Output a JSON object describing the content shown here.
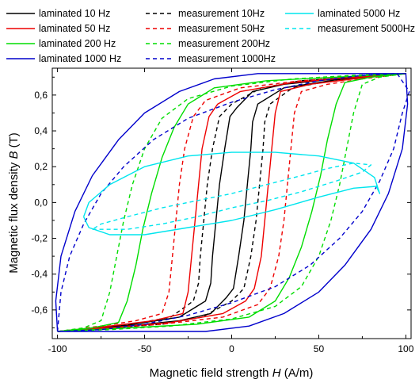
{
  "chart_data": {
    "type": "line",
    "xlabel": {
      "pre": "Magnetic field strength ",
      "var": "H",
      "post": " (A/m)"
    },
    "ylabel": {
      "pre": "Magnetic flux density ",
      "var": "B",
      "post": " (T)"
    },
    "xlim": [
      -103,
      103
    ],
    "ylim": [
      -0.76,
      0.75
    ],
    "xticks": [
      -100,
      -50,
      0,
      50,
      100
    ],
    "xtick_labels": [
      "-100",
      "-50",
      "0",
      "50",
      "100"
    ],
    "yticks": [
      -0.6,
      -0.4,
      -0.2,
      0.0,
      0.2,
      0.4,
      0.6
    ],
    "ytick_labels": [
      "-0,6",
      "-0,4",
      "-0,2",
      "0,0",
      "0,2",
      "0,4",
      "0,6"
    ],
    "grid": false,
    "legend_position": "top (above plot, 3 columns)",
    "series": [
      {
        "name": "laminated 10 Hz",
        "color": "#000000",
        "style": "solid",
        "points": [
          [
            -100,
            -0.72
          ],
          [
            -60,
            -0.685
          ],
          [
            -30,
            -0.64
          ],
          [
            -15,
            -0.55
          ],
          [
            -12,
            -0.45
          ],
          [
            -11,
            -0.3
          ],
          [
            -9,
            -0.1
          ],
          [
            -7,
            0.1
          ],
          [
            -4,
            0.3
          ],
          [
            -1,
            0.48
          ],
          [
            3,
            0.53
          ],
          [
            12,
            0.62
          ],
          [
            30,
            0.66
          ],
          [
            60,
            0.69
          ],
          [
            100,
            0.72
          ],
          [
            60,
            0.685
          ],
          [
            30,
            0.64
          ],
          [
            15,
            0.55
          ],
          [
            12,
            0.45
          ],
          [
            11,
            0.3
          ],
          [
            9,
            0.1
          ],
          [
            7,
            -0.1
          ],
          [
            4,
            -0.3
          ],
          [
            1,
            -0.48
          ],
          [
            -3,
            -0.53
          ],
          [
            -12,
            -0.62
          ],
          [
            -30,
            -0.66
          ],
          [
            -60,
            -0.69
          ],
          [
            -100,
            -0.72
          ]
        ]
      },
      {
        "name": "measurement 10Hz",
        "color": "#000000",
        "style": "dashed",
        "points": [
          [
            -100,
            -0.72
          ],
          [
            -60,
            -0.685
          ],
          [
            -35,
            -0.64
          ],
          [
            -22,
            -0.55
          ],
          [
            -19,
            -0.45
          ],
          [
            -18,
            -0.3
          ],
          [
            -16,
            -0.1
          ],
          [
            -14,
            0.1
          ],
          [
            -11,
            0.3
          ],
          [
            -7,
            0.48
          ],
          [
            0,
            0.55
          ],
          [
            17,
            0.64
          ],
          [
            40,
            0.68
          ],
          [
            70,
            0.7
          ],
          [
            100,
            0.72
          ],
          [
            60,
            0.685
          ],
          [
            35,
            0.64
          ],
          [
            22,
            0.55
          ],
          [
            19,
            0.45
          ],
          [
            18,
            0.3
          ],
          [
            16,
            0.1
          ],
          [
            14,
            -0.1
          ],
          [
            11,
            -0.3
          ],
          [
            7,
            -0.48
          ],
          [
            0,
            -0.55
          ],
          [
            -17,
            -0.64
          ],
          [
            -40,
            -0.68
          ],
          [
            -70,
            -0.7
          ],
          [
            -100,
            -0.72
          ]
        ]
      },
      {
        "name": "laminated 50 Hz",
        "color": "#ee0000",
        "style": "solid",
        "points": [
          [
            -100,
            -0.72
          ],
          [
            -70,
            -0.69
          ],
          [
            -45,
            -0.66
          ],
          [
            -28,
            -0.62
          ],
          [
            -25,
            -0.5
          ],
          [
            -23,
            -0.3
          ],
          [
            -21,
            -0.1
          ],
          [
            -19,
            0.1
          ],
          [
            -17,
            0.3
          ],
          [
            -13,
            0.48
          ],
          [
            -8,
            0.55
          ],
          [
            5,
            0.62
          ],
          [
            35,
            0.67
          ],
          [
            65,
            0.695
          ],
          [
            100,
            0.72
          ],
          [
            70,
            0.69
          ],
          [
            45,
            0.66
          ],
          [
            28,
            0.62
          ],
          [
            25,
            0.5
          ],
          [
            23,
            0.3
          ],
          [
            21,
            0.1
          ],
          [
            19,
            -0.1
          ],
          [
            17,
            -0.3
          ],
          [
            13,
            -0.48
          ],
          [
            8,
            -0.55
          ],
          [
            -5,
            -0.62
          ],
          [
            -35,
            -0.67
          ],
          [
            -65,
            -0.695
          ],
          [
            -100,
            -0.72
          ]
        ]
      },
      {
        "name": "measurement 50Hz",
        "color": "#ee0000",
        "style": "dashed",
        "points": [
          [
            -100,
            -0.72
          ],
          [
            -75,
            -0.69
          ],
          [
            -55,
            -0.66
          ],
          [
            -40,
            -0.62
          ],
          [
            -36,
            -0.5
          ],
          [
            -34,
            -0.3
          ],
          [
            -32,
            -0.1
          ],
          [
            -30,
            0.1
          ],
          [
            -27,
            0.3
          ],
          [
            -22,
            0.48
          ],
          [
            -15,
            0.57
          ],
          [
            5,
            0.64
          ],
          [
            40,
            0.68
          ],
          [
            70,
            0.7
          ],
          [
            100,
            0.72
          ],
          [
            75,
            0.69
          ],
          [
            55,
            0.66
          ],
          [
            40,
            0.62
          ],
          [
            36,
            0.5
          ],
          [
            34,
            0.3
          ],
          [
            32,
            0.1
          ],
          [
            30,
            -0.1
          ],
          [
            27,
            -0.3
          ],
          [
            22,
            -0.48
          ],
          [
            15,
            -0.57
          ],
          [
            -5,
            -0.64
          ],
          [
            -40,
            -0.68
          ],
          [
            -70,
            -0.7
          ],
          [
            -100,
            -0.72
          ]
        ]
      },
      {
        "name": "laminated 200 Hz",
        "color": "#00dd00",
        "style": "solid",
        "points": [
          [
            -100,
            -0.72
          ],
          [
            -80,
            -0.7
          ],
          [
            -65,
            -0.67
          ],
          [
            -60,
            -0.55
          ],
          [
            -55,
            -0.35
          ],
          [
            -51,
            -0.15
          ],
          [
            -46,
            0.05
          ],
          [
            -40,
            0.25
          ],
          [
            -33,
            0.42
          ],
          [
            -25,
            0.55
          ],
          [
            -10,
            0.64
          ],
          [
            20,
            0.68
          ],
          [
            60,
            0.7
          ],
          [
            100,
            0.72
          ],
          [
            80,
            0.7
          ],
          [
            65,
            0.67
          ],
          [
            60,
            0.55
          ],
          [
            55,
            0.35
          ],
          [
            51,
            0.15
          ],
          [
            46,
            -0.05
          ],
          [
            40,
            -0.25
          ],
          [
            33,
            -0.42
          ],
          [
            25,
            -0.55
          ],
          [
            10,
            -0.64
          ],
          [
            -20,
            -0.68
          ],
          [
            -60,
            -0.7
          ],
          [
            -100,
            -0.72
          ]
        ]
      },
      {
        "name": "measurement 200Hz",
        "color": "#00dd00",
        "style": "dashed",
        "points": [
          [
            -100,
            -0.72
          ],
          [
            -85,
            -0.7
          ],
          [
            -75,
            -0.66
          ],
          [
            -70,
            -0.5
          ],
          [
            -66,
            -0.3
          ],
          [
            -62,
            -0.1
          ],
          [
            -57,
            0.1
          ],
          [
            -50,
            0.3
          ],
          [
            -40,
            0.47
          ],
          [
            -25,
            0.58
          ],
          [
            0,
            0.65
          ],
          [
            35,
            0.69
          ],
          [
            70,
            0.71
          ],
          [
            100,
            0.72
          ],
          [
            85,
            0.7
          ],
          [
            75,
            0.66
          ],
          [
            70,
            0.5
          ],
          [
            66,
            0.3
          ],
          [
            62,
            0.1
          ],
          [
            57,
            -0.1
          ],
          [
            50,
            -0.3
          ],
          [
            40,
            -0.47
          ],
          [
            25,
            -0.58
          ],
          [
            0,
            -0.65
          ],
          [
            -35,
            -0.69
          ],
          [
            -70,
            -0.71
          ],
          [
            -100,
            -0.72
          ]
        ]
      },
      {
        "name": "laminated 1000 Hz",
        "color": "#0000cc",
        "style": "solid",
        "points": [
          [
            -100,
            -0.72
          ],
          [
            -101,
            -0.55
          ],
          [
            -98,
            -0.3
          ],
          [
            -90,
            -0.05
          ],
          [
            -80,
            0.15
          ],
          [
            -65,
            0.35
          ],
          [
            -50,
            0.5
          ],
          [
            -30,
            0.62
          ],
          [
            -10,
            0.69
          ],
          [
            15,
            0.72
          ],
          [
            45,
            0.72
          ],
          [
            75,
            0.72
          ],
          [
            100,
            0.72
          ],
          [
            101,
            0.55
          ],
          [
            98,
            0.3
          ],
          [
            90,
            0.05
          ],
          [
            80,
            -0.15
          ],
          [
            65,
            -0.35
          ],
          [
            50,
            -0.5
          ],
          [
            30,
            -0.62
          ],
          [
            10,
            -0.69
          ],
          [
            -15,
            -0.72
          ],
          [
            -45,
            -0.72
          ],
          [
            -75,
            -0.72
          ],
          [
            -100,
            -0.72
          ]
        ]
      },
      {
        "name": "measurement 1000Hz",
        "color": "#0000cc",
        "style": "dashed",
        "points": [
          [
            -100,
            -0.72
          ],
          [
            -98,
            -0.5
          ],
          [
            -93,
            -0.3
          ],
          [
            -85,
            -0.12
          ],
          [
            -75,
            0.05
          ],
          [
            -62,
            0.2
          ],
          [
            -45,
            0.35
          ],
          [
            -25,
            0.47
          ],
          [
            0,
            0.56
          ],
          [
            25,
            0.63
          ],
          [
            50,
            0.68
          ],
          [
            75,
            0.71
          ],
          [
            95,
            0.72
          ],
          [
            102,
            0.62
          ],
          [
            98,
            0.5
          ],
          [
            93,
            0.3
          ],
          [
            85,
            0.12
          ],
          [
            75,
            -0.05
          ],
          [
            62,
            -0.2
          ],
          [
            45,
            -0.35
          ],
          [
            25,
            -0.47
          ],
          [
            0,
            -0.56
          ],
          [
            -25,
            -0.63
          ],
          [
            -50,
            -0.68
          ],
          [
            -75,
            -0.71
          ],
          [
            -100,
            -0.72
          ]
        ]
      },
      {
        "name": "laminated 5000 Hz",
        "color": "#00e5ee",
        "style": "solid",
        "points": [
          [
            -85,
            -0.08
          ],
          [
            -82,
            -0.14
          ],
          [
            -70,
            -0.18
          ],
          [
            -50,
            -0.18
          ],
          [
            -25,
            -0.14
          ],
          [
            0,
            -0.1
          ],
          [
            25,
            -0.04
          ],
          [
            50,
            0.03
          ],
          [
            70,
            0.08
          ],
          [
            83,
            0.09
          ],
          [
            85,
            0.05
          ],
          [
            82,
            0.14
          ],
          [
            70,
            0.22
          ],
          [
            50,
            0.26
          ],
          [
            25,
            0.28
          ],
          [
            0,
            0.28
          ],
          [
            -25,
            0.26
          ],
          [
            -50,
            0.2
          ],
          [
            -70,
            0.1
          ],
          [
            -82,
            0.0
          ],
          [
            -85,
            -0.08
          ]
        ]
      },
      {
        "name": "measurement 5000Hz",
        "color": "#00e5ee",
        "style": "dashed",
        "points": [
          [
            -80,
            -0.15
          ],
          [
            -60,
            -0.15
          ],
          [
            -40,
            -0.12
          ],
          [
            -20,
            -0.08
          ],
          [
            0,
            -0.03
          ],
          [
            20,
            0.01
          ],
          [
            40,
            0.06
          ],
          [
            60,
            0.12
          ],
          [
            75,
            0.17
          ],
          [
            80,
            0.21
          ],
          [
            70,
            0.22
          ],
          [
            55,
            0.19
          ],
          [
            40,
            0.15
          ],
          [
            20,
            0.1
          ],
          [
            0,
            0.05
          ],
          [
            -20,
            0.01
          ],
          [
            -40,
            -0.03
          ],
          [
            -60,
            -0.08
          ],
          [
            -75,
            -0.12
          ],
          [
            -80,
            -0.15
          ]
        ]
      }
    ]
  }
}
